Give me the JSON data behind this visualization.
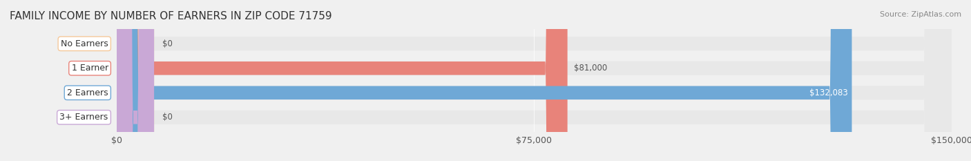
{
  "title": "FAMILY INCOME BY NUMBER OF EARNERS IN ZIP CODE 71759",
  "source": "Source: ZipAtlas.com",
  "categories": [
    "No Earners",
    "1 Earner",
    "2 Earners",
    "3+ Earners"
  ],
  "values": [
    0,
    81000,
    132083,
    0
  ],
  "bar_colors": [
    "#f5c89a",
    "#e8837a",
    "#6fa8d6",
    "#c9a8d6"
  ],
  "bar_edge_colors": [
    "#e8a860",
    "#d45a50",
    "#4a80b8",
    "#a070b8"
  ],
  "label_colors": [
    "#888888",
    "#888888",
    "#ffffff",
    "#888888"
  ],
  "xlim": [
    0,
    150000
  ],
  "xticks": [
    0,
    75000,
    150000
  ],
  "xtick_labels": [
    "$0",
    "$75,000",
    "$150,000"
  ],
  "value_labels": [
    "$0",
    "$81,000",
    "$132,083",
    "$0"
  ],
  "background_color": "#f0f0f0",
  "bar_bg_color": "#e8e8e8",
  "title_fontsize": 11,
  "source_fontsize": 8,
  "label_fontsize": 9,
  "value_fontsize": 8.5,
  "bar_height": 0.55,
  "fig_width": 14.06,
  "fig_height": 2.33
}
